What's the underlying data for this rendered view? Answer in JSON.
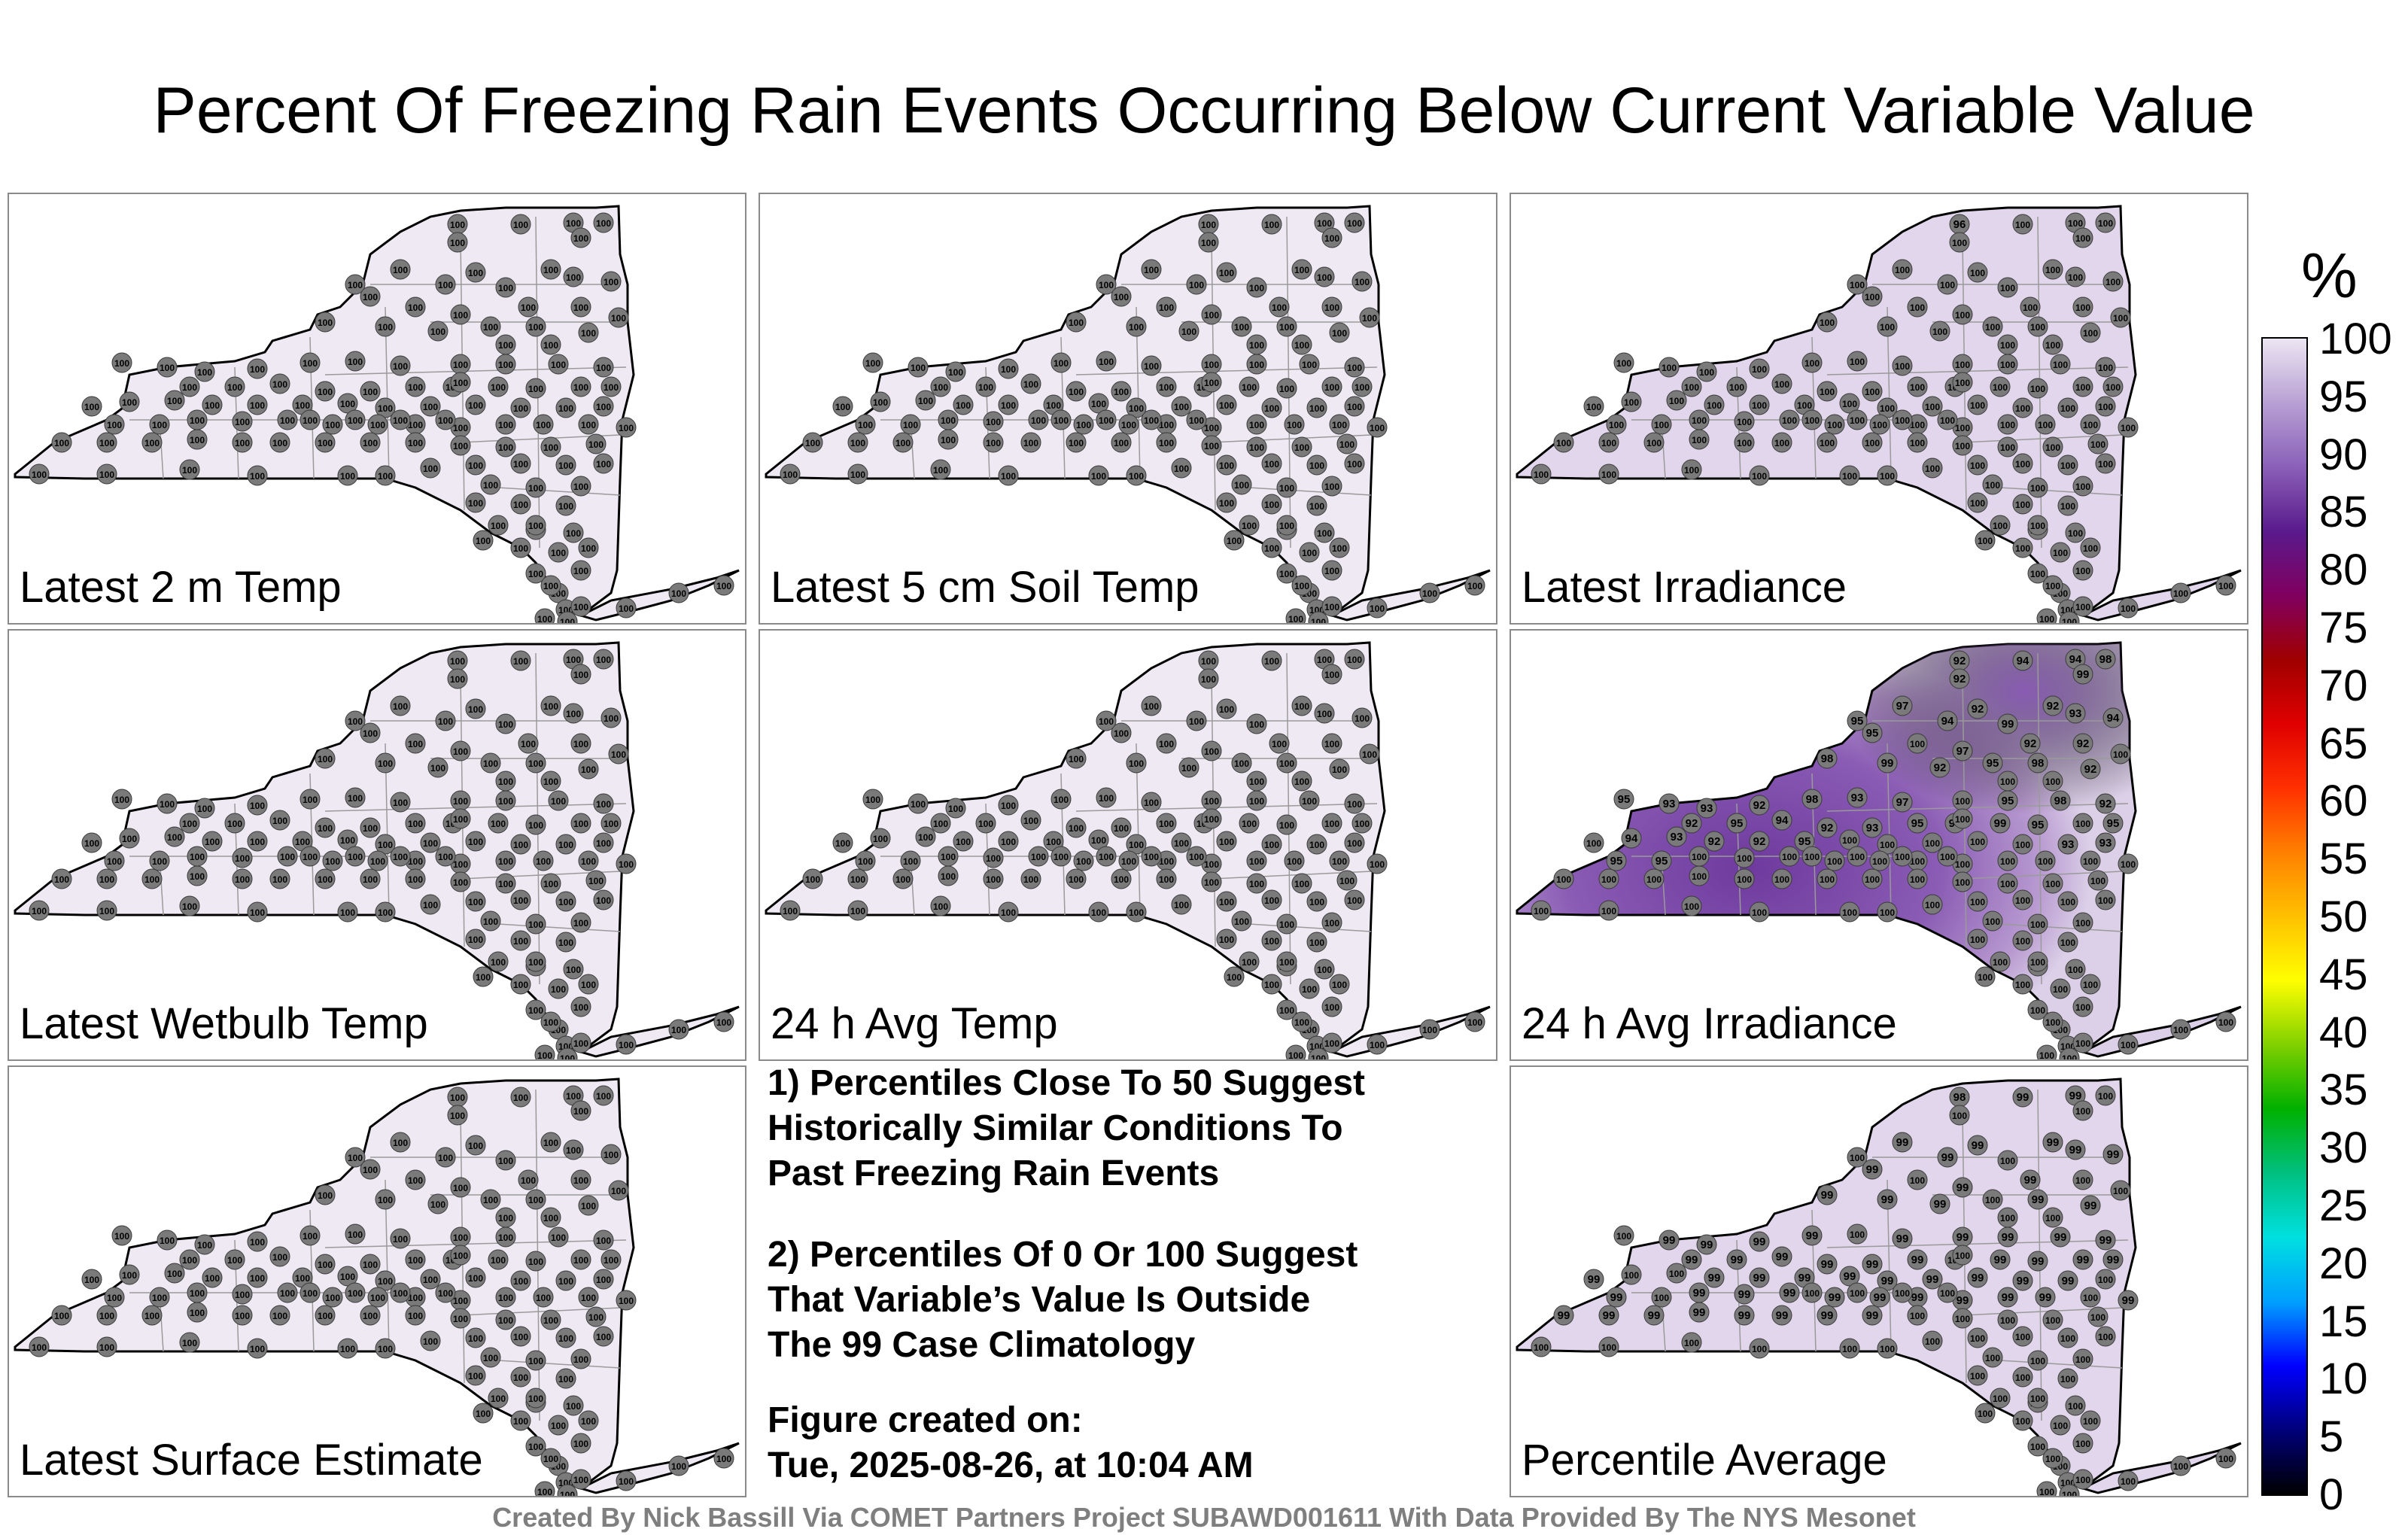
{
  "title": "Percent Of Freezing Rain Events Occurring Below Current Variable Value",
  "panels": [
    {
      "id": "p1",
      "label": "Latest 2 m Temp",
      "mode": "uniform",
      "fill": "#efe9f3",
      "region": [],
      "values": []
    },
    {
      "id": "p2",
      "label": "Latest 5 cm Soil Temp",
      "mode": "uniform",
      "fill": "#efe9f3",
      "region": [],
      "values": []
    },
    {
      "id": "p3",
      "label": "Latest Irradiance",
      "mode": "uniform",
      "fill": "#e2d6ec",
      "region": [],
      "values": [
        "96",
        "100",
        "100",
        "100",
        "100",
        "100",
        "100",
        "100",
        "100",
        "100",
        "100",
        "100",
        "100",
        "100",
        "100",
        "100",
        "100",
        "100",
        "100",
        "100",
        "100",
        "100",
        "100",
        "100",
        "100",
        "100",
        "100",
        "100",
        "100",
        "100",
        "100",
        "100",
        "100",
        "100",
        "100",
        "100",
        "100",
        "100",
        "100",
        "100",
        "100",
        "100",
        "100",
        "100",
        "100",
        "100",
        "100",
        "100",
        "100",
        "100",
        "100",
        "100",
        "100",
        "100",
        "100",
        "100",
        "100",
        "100",
        "100",
        "100",
        "100",
        "100",
        "100",
        "100",
        "100",
        "100",
        "100",
        "100",
        "100",
        "100",
        "100",
        "100",
        "100",
        "100",
        "100",
        "100",
        "100",
        "100",
        "100",
        "100",
        "100",
        "100",
        "100",
        "100",
        "100",
        "100",
        "100",
        "100",
        "100",
        "100",
        "100",
        "100",
        "100",
        "100",
        "100",
        "100",
        "100",
        "100",
        "100",
        "100",
        "100",
        "100",
        "100",
        "100",
        "100",
        "100",
        "100",
        "100",
        "100",
        "100",
        "100",
        "100",
        "100",
        "100",
        "100",
        "100",
        "100",
        "100",
        "100",
        "100",
        "100",
        "100",
        "100",
        "100",
        "100",
        "100",
        "100",
        "100",
        "100",
        "100",
        "100"
      ]
    },
    {
      "id": "p4",
      "label": "Latest Wetbulb Temp",
      "mode": "uniform",
      "fill": "#efe9f3",
      "region": [],
      "values": []
    },
    {
      "id": "p5",
      "label": "24 h Avg Temp",
      "mode": "uniform",
      "fill": "#efe9f3",
      "region": [],
      "values": []
    },
    {
      "id": "p6",
      "label": "24 h Avg Irradiance",
      "mode": "gradient",
      "fill": "#dcd0e8",
      "region": [
        "#b89ad0",
        "#8a5cb4",
        "#6e3a9e"
      ],
      "values": [
        "92",
        "94",
        "94",
        "98",
        "99",
        "92",
        "97",
        "95",
        "92",
        "92",
        "93",
        "94",
        "94",
        "99",
        "95",
        "100",
        "97",
        "92",
        "92",
        "100",
        "98",
        "99",
        "92",
        "95",
        "98",
        "92",
        "95",
        "93",
        "93",
        "92",
        "98",
        "93",
        "97",
        "100",
        "95",
        "98",
        "92",
        "92",
        "95",
        "94",
        "92",
        "93",
        "95",
        "94",
        "99",
        "95",
        "100",
        "95",
        "100",
        "94",
        "93",
        "92",
        "92",
        "95",
        "100",
        "100",
        "100",
        "100",
        "100",
        "93",
        "93",
        "95",
        "95",
        "100",
        "100",
        "100",
        "100",
        "100",
        "100",
        "100",
        "100",
        "100",
        "100",
        "100",
        "100",
        "100",
        "100",
        "100",
        "100",
        "100",
        "100",
        "100",
        "100",
        "100",
        "100",
        "100",
        "100",
        "100",
        "100",
        "100",
        "100",
        "100",
        "100",
        "100",
        "100",
        "100",
        "100",
        "100",
        "100",
        "100",
        "100",
        "100",
        "100",
        "100",
        "100",
        "100",
        "100",
        "100",
        "100",
        "100",
        "100",
        "100",
        "100",
        "100",
        "100",
        "100",
        "100",
        "100",
        "100",
        "100",
        "100",
        "100",
        "100",
        "100",
        "100",
        "100",
        "100",
        "100",
        "100",
        "100"
      ]
    },
    {
      "id": "p7",
      "label": "Latest Surface Estimate",
      "mode": "uniform",
      "fill": "#efe9f3",
      "region": [],
      "values": []
    },
    {
      "id": "p8",
      "label": "Percentile Average",
      "mode": "uniform",
      "fill": "#e2d6ec",
      "region": [],
      "values": [
        "98",
        "99",
        "99",
        "100",
        "100",
        "100",
        "99",
        "100",
        "99",
        "99",
        "99",
        "99",
        "99",
        "100",
        "99",
        "100",
        "99",
        "99",
        "100",
        "100",
        "99",
        "99",
        "99",
        "100",
        "99",
        "99",
        "100",
        "99",
        "99",
        "99",
        "99",
        "100",
        "99",
        "99",
        "99",
        "99",
        "99",
        "99",
        "99",
        "99",
        "99",
        "99",
        "99",
        "100",
        "99",
        "99",
        "99",
        "99",
        "99",
        "100",
        "100",
        "99",
        "99",
        "99",
        "99",
        "99",
        "99",
        "99",
        "99",
        "99",
        "100",
        "99",
        "100",
        "99",
        "99",
        "99",
        "99",
        "99",
        "99",
        "99",
        "99",
        "99",
        "100",
        "99",
        "99",
        "99",
        "99",
        "99",
        "99",
        "99",
        "99",
        "99",
        "100",
        "100",
        "100",
        "100",
        "100",
        "100",
        "100",
        "100",
        "100",
        "100",
        "100",
        "100",
        "100",
        "100",
        "100",
        "100",
        "100",
        "100",
        "100",
        "100",
        "100",
        "100",
        "100",
        "100",
        "100",
        "100",
        "100",
        "100",
        "100",
        "100",
        "100",
        "100",
        "100",
        "100",
        "100",
        "100",
        "100",
        "100",
        "100",
        "100",
        "100",
        "100",
        "100",
        "100",
        "100",
        "100",
        "100",
        "100",
        "100"
      ]
    }
  ],
  "notes": {
    "n1": [
      "1) Percentiles Close To 50 Suggest",
      "Historically Similar Conditions To",
      "Past Freezing Rain Events"
    ],
    "n2": [
      "2) Percentiles Of 0 Or 100 Suggest",
      "That Variable’s Value Is Outside",
      "The 99 Case Climatology"
    ],
    "n3": [
      "Figure created on:",
      "Tue, 2025-08-26, at 10:04 AM"
    ]
  },
  "colorbar": {
    "title": "%",
    "ticks": [
      "100",
      "95",
      "90",
      "85",
      "80",
      "75",
      "70",
      "65",
      "60",
      "55",
      "50",
      "45",
      "40",
      "35",
      "30",
      "25",
      "20",
      "15",
      "10",
      "5",
      "0"
    ],
    "stops": [
      "#000000",
      "#00007a",
      "#0000ff",
      "#00a0ff",
      "#00e0e0",
      "#00c080",
      "#00b000",
      "#80d000",
      "#ffff00",
      "#ffc000",
      "#ff8000",
      "#ff3000",
      "#e00000",
      "#a00000",
      "#800060",
      "#5a1a8c",
      "#8a60b8",
      "#b8a0d4",
      "#ece6f2"
    ]
  },
  "footer": "Created By Nick Bassill Via COMET Partners Project SUBAWD001611 With Data Provided By The NYS Mesonet"
}
